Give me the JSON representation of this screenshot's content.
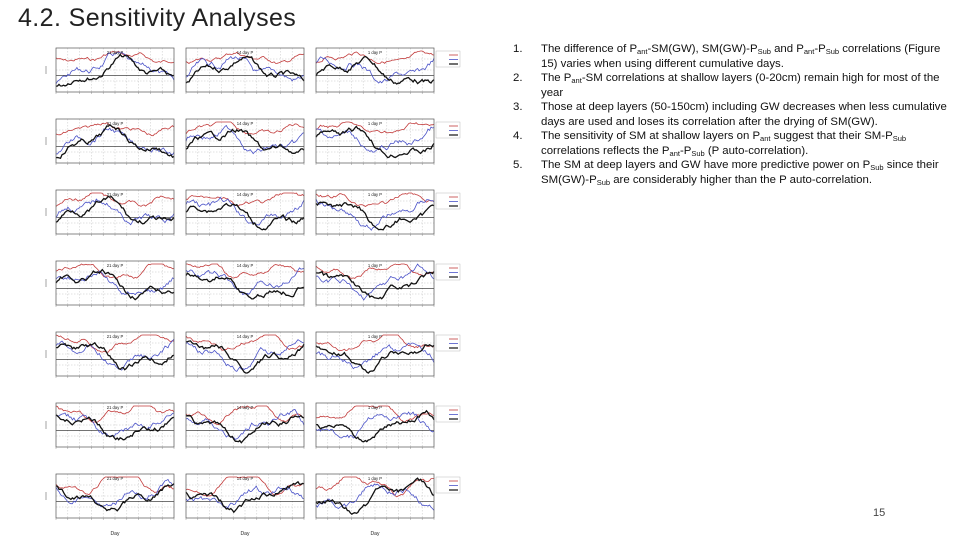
{
  "slide": {
    "title": "4.2. Sensitivity Analyses",
    "page_number": "15"
  },
  "figure": {
    "row_panel_titles": [
      "21 day P",
      "14 day P",
      "1 day P"
    ],
    "x_axis_label": "Day",
    "colors": {
      "black": "#111111",
      "blue": "#4a52c8",
      "red": "#c23b3b",
      "grid": "#b5b5b5",
      "frame": "#555555"
    }
  },
  "bullets": [
    {
      "number": "1.",
      "segments": [
        {
          "t": "The difference of P"
        },
        {
          "t": "ant",
          "sub": true
        },
        {
          "t": "-SM(GW), SM(GW)-P"
        },
        {
          "t": "Sub",
          "sub": true
        },
        {
          "t": " and P"
        },
        {
          "t": "ant",
          "sub": true
        },
        {
          "t": "-P"
        },
        {
          "t": "Sub",
          "sub": true
        },
        {
          "t": " correlations (Figure 15) varies when using different cumulative days."
        }
      ]
    },
    {
      "number": "2.",
      "segments": [
        {
          "t": "The P"
        },
        {
          "t": "ant",
          "sub": true
        },
        {
          "t": "-SM correlations at shallow layers (0-20cm) remain high for most of the year"
        }
      ]
    },
    {
      "number": "3.",
      "segments": [
        {
          "t": "Those at deep layers (50-150cm) including GW decreases when less cumulative days are used and loses its correlation after the drying of SM(GW)."
        }
      ]
    },
    {
      "number": "4.",
      "segments": [
        {
          "t": "The sensitivity of SM at shallow layers on P"
        },
        {
          "t": "ant",
          "sub": true
        },
        {
          "t": " suggest that their SM-P"
        },
        {
          "t": "Sub",
          "sub": true
        },
        {
          "t": " correlations reflects the P"
        },
        {
          "t": "ant",
          "sub": true
        },
        {
          "t": "-P"
        },
        {
          "t": "Sub",
          "sub": true
        },
        {
          "t": " (P auto-correlation)."
        }
      ]
    },
    {
      "number": "5.",
      "segments": [
        {
          "t": "The SM at deep layers and GW have more predictive power on P"
        },
        {
          "t": "Sub",
          "sub": true
        },
        {
          "t": " since their SM(GW)-P"
        },
        {
          "t": "Sub",
          "sub": true
        },
        {
          "t": " are considerably higher than the P auto-correlation."
        }
      ]
    }
  ]
}
